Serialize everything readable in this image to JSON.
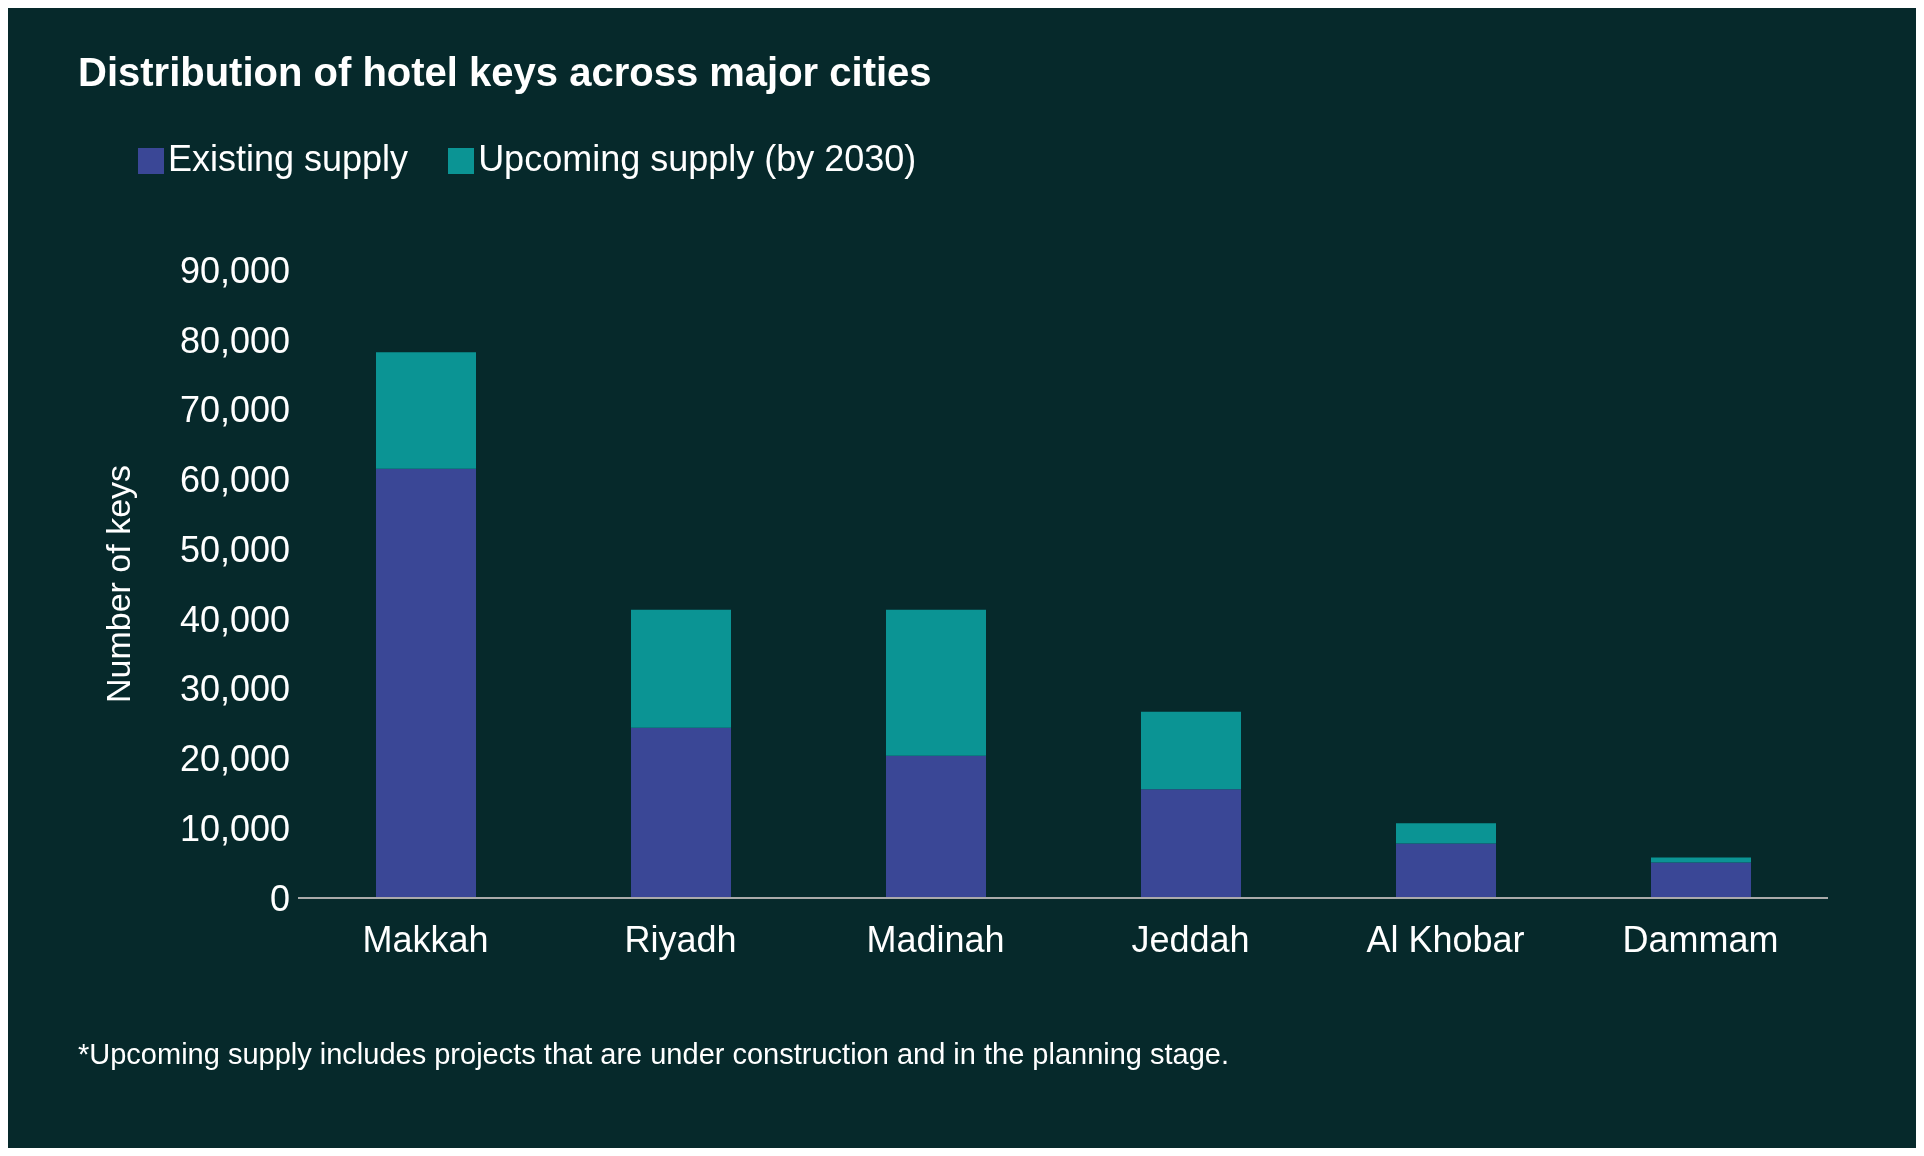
{
  "chart_data": {
    "type": "bar",
    "title": "Distribution of hotel keys across major cities",
    "ylabel": "Number of keys",
    "categories": [
      "Makkah",
      "Riyadh",
      "Madinah",
      "Jeddah",
      "Al Khobar",
      "Dammam"
    ],
    "stacked": true,
    "series": [
      {
        "name": "Existing supply",
        "color": "#3a4796",
        "values": [
          61500,
          24400,
          20400,
          15600,
          7800,
          5100
        ]
      },
      {
        "name": "Upcoming supply (by 2030)",
        "color": "#0b9494",
        "values": [
          16700,
          16900,
          20900,
          11100,
          2900,
          700
        ]
      }
    ],
    "ylim": [
      0,
      90000
    ],
    "yticks": [
      0,
      {
        "value": 10000,
        "label": "10,000"
      },
      {
        "value": 20000,
        "label": "20,000"
      },
      {
        "value": 30000,
        "label": "30,000"
      },
      {
        "value": 40000,
        "label": "40,000"
      },
      {
        "value": 50000,
        "label": "50,000"
      },
      {
        "value": 60000,
        "label": "60,000"
      },
      {
        "value": 70000,
        "label": "70,000"
      },
      {
        "value": 80000,
        "label": "80,000"
      },
      {
        "value": 90000,
        "label": "90,000"
      }
    ],
    "grid": false,
    "legend": "top left",
    "annotations": [
      "*Upcoming supply includes projects that are under construction and in the planning stage."
    ]
  }
}
